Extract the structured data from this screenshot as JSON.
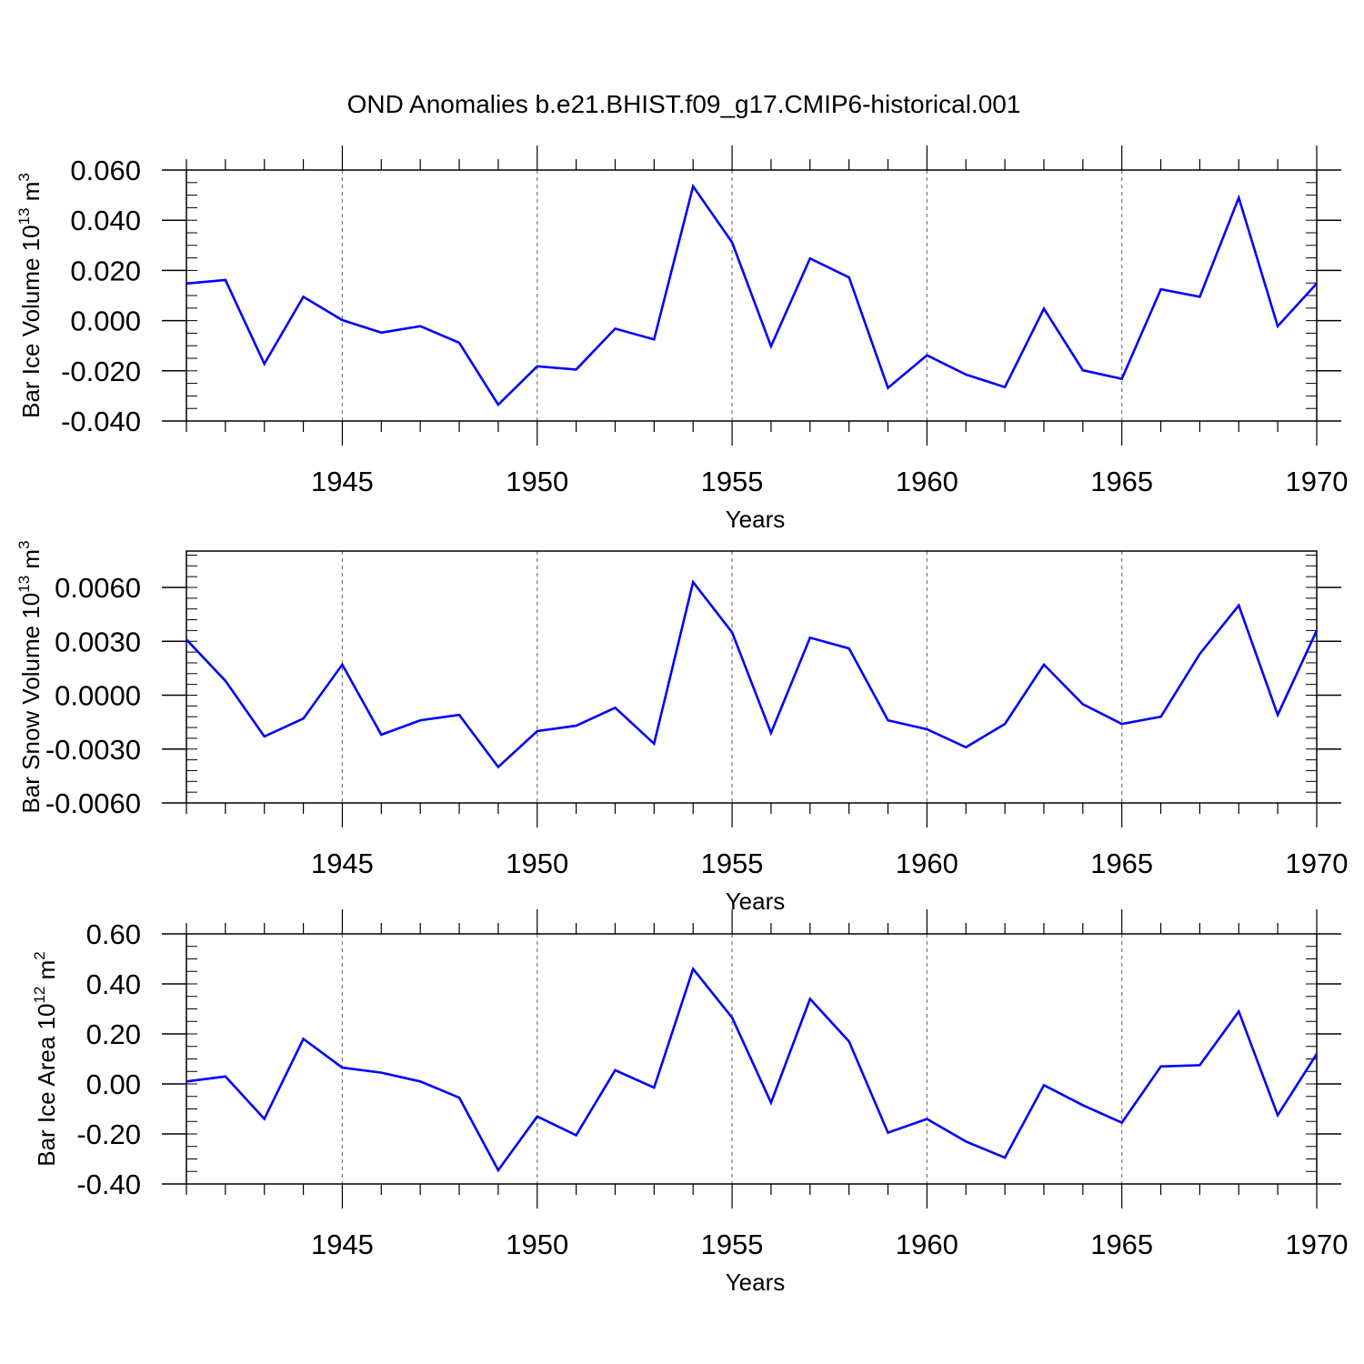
{
  "title": "OND Anomalies b.e21.BHIST.f09_g17.CMIP6-historical.001",
  "line_color": "#0000ff",
  "chart_data": [
    {
      "type": "line",
      "title": "",
      "xlabel": "Years",
      "ylabel": {
        "base": "Bar Ice Volume 10",
        "exp": "13",
        "unit": " m",
        "unit_exp": "3"
      },
      "xlim": [
        1941,
        1970
      ],
      "ylim": [
        -0.04,
        0.06
      ],
      "x_ticks": [
        1945,
        1950,
        1955,
        1960,
        1965,
        1970
      ],
      "y_ticks": [
        0.06,
        0.04,
        0.02,
        0.0,
        -0.02,
        -0.04
      ],
      "y_tick_labels": [
        "0.060",
        "0.040",
        "0.020",
        "0.000",
        "-0.020",
        "-0.040"
      ],
      "y_minor_step": 0.005,
      "x": [
        1941,
        1942,
        1943,
        1944,
        1945,
        1946,
        1947,
        1948,
        1949,
        1950,
        1951,
        1952,
        1953,
        1954,
        1955,
        1956,
        1957,
        1958,
        1959,
        1960,
        1961,
        1962,
        1963,
        1964,
        1965,
        1966,
        1967,
        1968,
        1969,
        1970
      ],
      "series": [
        {
          "values": [
            0.0148,
            0.0162,
            -0.0172,
            0.0095,
            0.0002,
            -0.0048,
            -0.0022,
            -0.0088,
            -0.0335,
            -0.0182,
            -0.0195,
            -0.0032,
            -0.0075,
            0.0535,
            0.0312,
            -0.0102,
            0.0248,
            0.0172,
            -0.0268,
            -0.0138,
            -0.0215,
            -0.0265,
            0.0048,
            -0.0198,
            -0.0232,
            0.0125,
            0.0095,
            0.049,
            -0.0022,
            0.0148
          ]
        }
      ]
    },
    {
      "type": "line",
      "title": "",
      "xlabel": "Years",
      "ylabel": {
        "base": "Bar Snow Volume 10",
        "exp": "13",
        "unit": " m",
        "unit_exp": "3"
      },
      "xlim": [
        1941,
        1970
      ],
      "ylim": [
        -0.006,
        0.008
      ],
      "x_ticks": [
        1945,
        1950,
        1955,
        1960,
        1965,
        1970
      ],
      "y_ticks": [
        0.006,
        0.003,
        0.0,
        -0.003,
        -0.006
      ],
      "y_tick_labels": [
        "0.0060",
        "0.0030",
        "0.0000",
        "-0.0030",
        "-0.0060"
      ],
      "y_minor_step": 0.0006,
      "x": [
        1941,
        1942,
        1943,
        1944,
        1945,
        1946,
        1947,
        1948,
        1949,
        1950,
        1951,
        1952,
        1953,
        1954,
        1955,
        1956,
        1957,
        1958,
        1959,
        1960,
        1961,
        1962,
        1963,
        1964,
        1965,
        1966,
        1967,
        1968,
        1969,
        1970
      ],
      "series": [
        {
          "values": [
            0.0031,
            0.0008,
            -0.0023,
            -0.0013,
            0.0017,
            -0.0022,
            -0.0014,
            -0.0011,
            -0.004,
            -0.002,
            -0.0017,
            -0.0007,
            -0.0027,
            0.0063,
            0.0035,
            -0.0021,
            0.0032,
            0.0026,
            -0.0014,
            -0.0019,
            -0.0029,
            -0.0016,
            0.0017,
            -0.0005,
            -0.0016,
            -0.0012,
            0.0023,
            0.005,
            -0.0011,
            0.0036
          ]
        }
      ]
    },
    {
      "type": "line",
      "title": "",
      "xlabel": "Years",
      "ylabel": {
        "base": "Bar Ice Area 10",
        "exp": "12",
        "unit": " m",
        "unit_exp": "2"
      },
      "xlim": [
        1941,
        1970
      ],
      "ylim": [
        -0.4,
        0.6
      ],
      "x_ticks": [
        1945,
        1950,
        1955,
        1960,
        1965,
        1970
      ],
      "y_ticks": [
        0.6,
        0.4,
        0.2,
        0.0,
        -0.2,
        -0.4
      ],
      "y_tick_labels": [
        "0.60",
        "0.40",
        "0.20",
        "0.00",
        "-0.20",
        "-0.40"
      ],
      "y_minor_step": 0.05,
      "x": [
        1941,
        1942,
        1943,
        1944,
        1945,
        1946,
        1947,
        1948,
        1949,
        1950,
        1951,
        1952,
        1953,
        1954,
        1955,
        1956,
        1957,
        1958,
        1959,
        1960,
        1961,
        1962,
        1963,
        1964,
        1965,
        1966,
        1967,
        1968,
        1969,
        1970
      ],
      "series": [
        {
          "values": [
            0.01,
            0.03,
            -0.14,
            0.18,
            0.065,
            0.045,
            0.01,
            -0.055,
            -0.345,
            -0.13,
            -0.205,
            0.055,
            -0.015,
            0.46,
            0.265,
            -0.075,
            0.34,
            0.17,
            -0.195,
            -0.14,
            -0.23,
            -0.295,
            -0.005,
            -0.085,
            -0.155,
            0.07,
            0.075,
            0.29,
            -0.125,
            0.12
          ]
        }
      ]
    }
  ]
}
